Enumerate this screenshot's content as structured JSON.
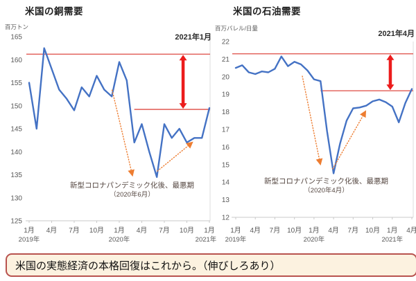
{
  "chart_data": [
    {
      "type": "line",
      "title": "米国の銅需要",
      "ylabel": "百万トン",
      "ylim": [
        125,
        165
      ],
      "y_ticks": [
        165,
        160,
        155,
        150,
        145,
        140,
        135,
        130,
        125
      ],
      "x_ticks": [
        "1月",
        "4月",
        "7月",
        "10月",
        "1月",
        "4月",
        "7月",
        "10月",
        "1月"
      ],
      "year_ticks": [
        "2019年",
        "2020年",
        "2021年"
      ],
      "categories": [
        "2019/1",
        "2019/2",
        "2019/3",
        "2019/4",
        "2019/5",
        "2019/6",
        "2019/7",
        "2019/8",
        "2019/9",
        "2019/10",
        "2019/11",
        "2019/12",
        "2020/1",
        "2020/2",
        "2020/3",
        "2020/4",
        "2020/5",
        "2020/6",
        "2020/7",
        "2020/8",
        "2020/9",
        "2020/10",
        "2020/11",
        "2020/12",
        "2021/1"
      ],
      "values": [
        155,
        145,
        162.5,
        158,
        153.5,
        151.5,
        149,
        154,
        152,
        156.5,
        153.5,
        152,
        159.5,
        155.5,
        142,
        146,
        140,
        134.5,
        146,
        143,
        145,
        142,
        143,
        143,
        149.5
      ],
      "ref_top": 161.2,
      "ref_low": 149.2,
      "annotations": {
        "peak_label": "2021年1月",
        "covid_note": "新型コロナパンデミック化後、最悪期",
        "covid_date": "（2020年6月）"
      },
      "legend": "none",
      "grid": "off"
    },
    {
      "type": "line",
      "title": "米国の石油需要",
      "ylabel": "百万バレル/日量",
      "ylim": [
        12,
        22
      ],
      "y_ticks": [
        22,
        21,
        20,
        19,
        18,
        17,
        16,
        15,
        14,
        13,
        12
      ],
      "x_ticks": [
        "1月",
        "4月",
        "7月",
        "10月",
        "1月",
        "4月",
        "7月",
        "10月",
        "1月",
        "4月"
      ],
      "year_ticks": [
        "2019年",
        "2020年",
        "2021年"
      ],
      "categories": [
        "2019/1",
        "2019/2",
        "2019/3",
        "2019/4",
        "2019/5",
        "2019/6",
        "2019/7",
        "2019/8",
        "2019/9",
        "2019/10",
        "2019/11",
        "2019/12",
        "2020/1",
        "2020/2",
        "2020/3",
        "2020/4",
        "2020/5",
        "2020/6",
        "2020/7",
        "2020/8",
        "2020/9",
        "2020/10",
        "2020/11",
        "2020/12",
        "2021/1",
        "2021/2",
        "2021/3",
        "2021/4"
      ],
      "values": [
        20.5,
        20.65,
        20.25,
        20.15,
        20.3,
        20.25,
        20.45,
        21.15,
        20.6,
        20.85,
        20.7,
        20.35,
        19.85,
        19.75,
        16.9,
        14.5,
        16.2,
        17.5,
        18.2,
        18.25,
        18.35,
        18.6,
        18.7,
        18.55,
        18.3,
        17.4,
        18.5,
        19.3
      ],
      "ref_top": 21.3,
      "ref_low": 19.2,
      "annotations": {
        "peak_label": "2021年4月",
        "covid_note": "新型コロナパンデミック化後、最悪期",
        "covid_date": "（2020年4月）"
      },
      "legend": "none",
      "grid": "off"
    }
  ],
  "footer": {
    "text": "米国の実態経済の本格回復はこれから。（伸びしろあり）"
  },
  "colors": {
    "line": "#4472C4",
    "ref_line": "#de4840",
    "double_arrow": "#ec1c1c",
    "orange_arrow": "#ED7D31",
    "axis": "#c9c9c9",
    "tick_text": "#595959",
    "footer_border": "#b8524e",
    "footer_bg": "#fcf2e0"
  }
}
